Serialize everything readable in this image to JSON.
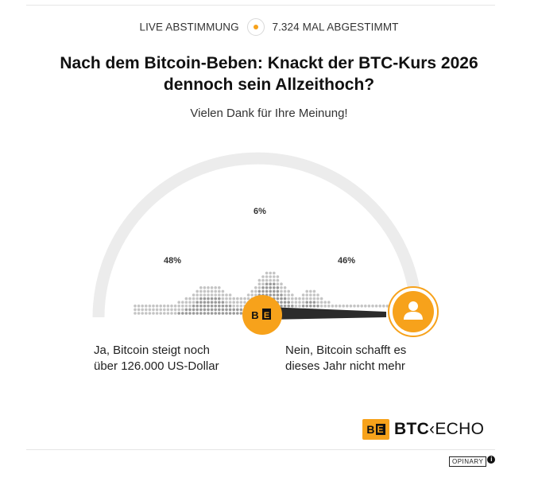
{
  "header": {
    "live_label": "LIVE ABSTIMMUNG",
    "votes_label": "7.324 MAL ABGESTIMMT",
    "accent_color": "#f7a21b"
  },
  "poll": {
    "title": "Nach dem Bitcoin-Beben: Knackt der BTC-Kurs 2026 dennoch sein Allzeithoch?",
    "thanks": "Vielen Dank für Ihre Meinung!",
    "results": [
      {
        "percent": "48%",
        "value": 0.48
      },
      {
        "percent": "6%",
        "value": 0.06
      },
      {
        "percent": "46%",
        "value": 0.46
      }
    ],
    "options": {
      "left": [
        "Ja, Bitcoin steigt noch",
        "über 126.000 US-Dollar"
      ],
      "right": [
        "Nein, Bitcoin schafft es",
        "dieses Jahr nicht mehr"
      ]
    },
    "user_vote": "right",
    "needle_logo": {
      "b": "B",
      "e": "E"
    }
  },
  "branding": {
    "logo_b": "B",
    "logo_e": "E",
    "name_bold": "BTC",
    "name_arrow": "‹",
    "name_light": "ECHO",
    "footer": "OPINARY",
    "info_symbol": "i"
  },
  "icons": [
    "user-icon",
    "info-icon"
  ]
}
